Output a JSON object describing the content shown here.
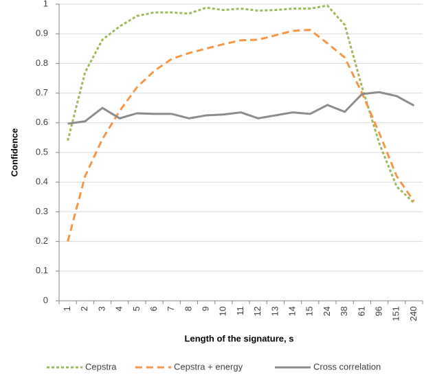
{
  "chart_data": {
    "type": "line",
    "x_label": "Length of the signature, s",
    "y_label": "Confidence",
    "categories": [
      "1",
      "2",
      "3",
      "4",
      "5",
      "6",
      "7",
      "8",
      "9",
      "10",
      "11",
      "12",
      "13",
      "14",
      "15",
      "24",
      "38",
      "61",
      "96",
      "151",
      "240"
    ],
    "series": [
      {
        "name": "Cepstra",
        "color": "#9bbb59",
        "values": [
          0.54,
          0.77,
          0.88,
          0.925,
          0.96,
          0.972,
          0.972,
          0.968,
          0.988,
          0.98,
          0.985,
          0.978,
          0.98,
          0.985,
          0.985,
          0.995,
          0.93,
          0.72,
          0.53,
          0.385,
          0.33
        ]
      },
      {
        "name": "Cepstra + energy",
        "color": "#f79646",
        "values": [
          0.2,
          0.42,
          0.545,
          0.64,
          0.72,
          0.775,
          0.815,
          0.835,
          0.85,
          0.865,
          0.878,
          0.88,
          0.895,
          0.91,
          0.913,
          0.868,
          0.82,
          0.7,
          0.565,
          0.42,
          0.335
        ]
      },
      {
        "name": "Cross correlation",
        "color": "#8c8c8c",
        "values": [
          0.597,
          0.605,
          0.65,
          0.615,
          0.632,
          0.63,
          0.63,
          0.615,
          0.625,
          0.628,
          0.635,
          0.615,
          0.625,
          0.635,
          0.63,
          0.66,
          0.637,
          0.697,
          0.703,
          0.69,
          0.658
        ]
      }
    ],
    "ylim": [
      0,
      1
    ],
    "yticks": [
      0,
      0.1,
      0.2,
      0.3,
      0.4,
      0.5,
      0.6,
      0.7,
      0.8,
      0.9,
      1
    ],
    "grid": true
  }
}
